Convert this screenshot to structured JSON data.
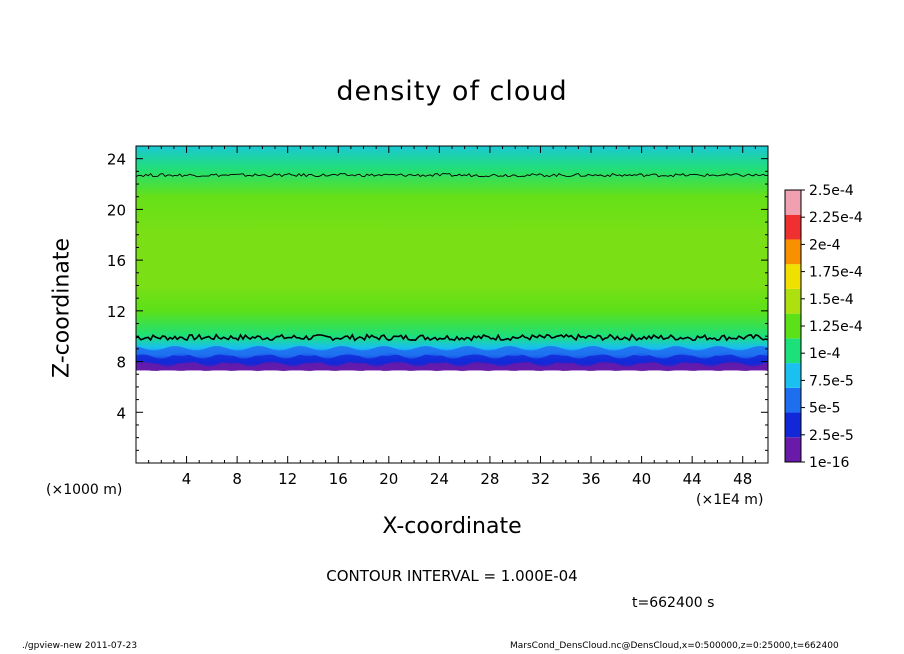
{
  "chart_data": {
    "type": "heatmap",
    "title": "density of cloud",
    "xlabel": "X-coordinate",
    "ylabel": "Z-coordinate",
    "x_unit_label": "(×1000 m)",
    "x_scale_label": "(×1E4 m)",
    "xlim": [
      0,
      50
    ],
    "ylim": [
      0,
      25
    ],
    "x_ticks": [
      4,
      8,
      12,
      16,
      20,
      24,
      28,
      32,
      36,
      40,
      44,
      48
    ],
    "y_ticks": [
      4,
      8,
      12,
      16,
      20,
      24
    ],
    "colorbar": {
      "labels": [
        "1e-16",
        "2.5e-5",
        "5e-5",
        "7.5e-5",
        "1e-4",
        "1.25e-4",
        "1.5e-4",
        "1.75e-4",
        "2e-4",
        "2.25e-4",
        "2.5e-4"
      ],
      "colors": [
        "#6a1aa8",
        "#1228d8",
        "#1e6ff0",
        "#19c0f0",
        "#1ce07a",
        "#5ce018",
        "#aee010",
        "#f0e000",
        "#f89000",
        "#f03030",
        "#f0a0b0"
      ]
    },
    "profile": [
      {
        "z": 7.3,
        "value": 1e-16
      },
      {
        "z": 7.9,
        "value": 2.5e-05
      },
      {
        "z": 8.5,
        "value": 5e-05
      },
      {
        "z": 9.1,
        "value": 7.5e-05
      },
      {
        "z": 10.0,
        "value": 0.0001
      },
      {
        "z": 12.0,
        "value": 0.000125
      },
      {
        "z": 14.0,
        "value": 0.00014
      },
      {
        "z": 18.0,
        "value": 0.00014
      },
      {
        "z": 21.0,
        "value": 0.00013
      },
      {
        "z": 23.0,
        "value": 0.000105
      },
      {
        "z": 25.0,
        "value": 8.5e-05
      }
    ],
    "contour_levels_z": [
      9.9,
      22.7
    ],
    "contour_interval_text": "CONTOUR INTERVAL = 1.000E-04",
    "time_text": "t=662400 s"
  },
  "footer": {
    "left": "./gpview-new 2011-07-23",
    "right": "MarsCond_DensCloud.nc@DensCloud,x=0:500000,z=0:25000,t=662400"
  }
}
